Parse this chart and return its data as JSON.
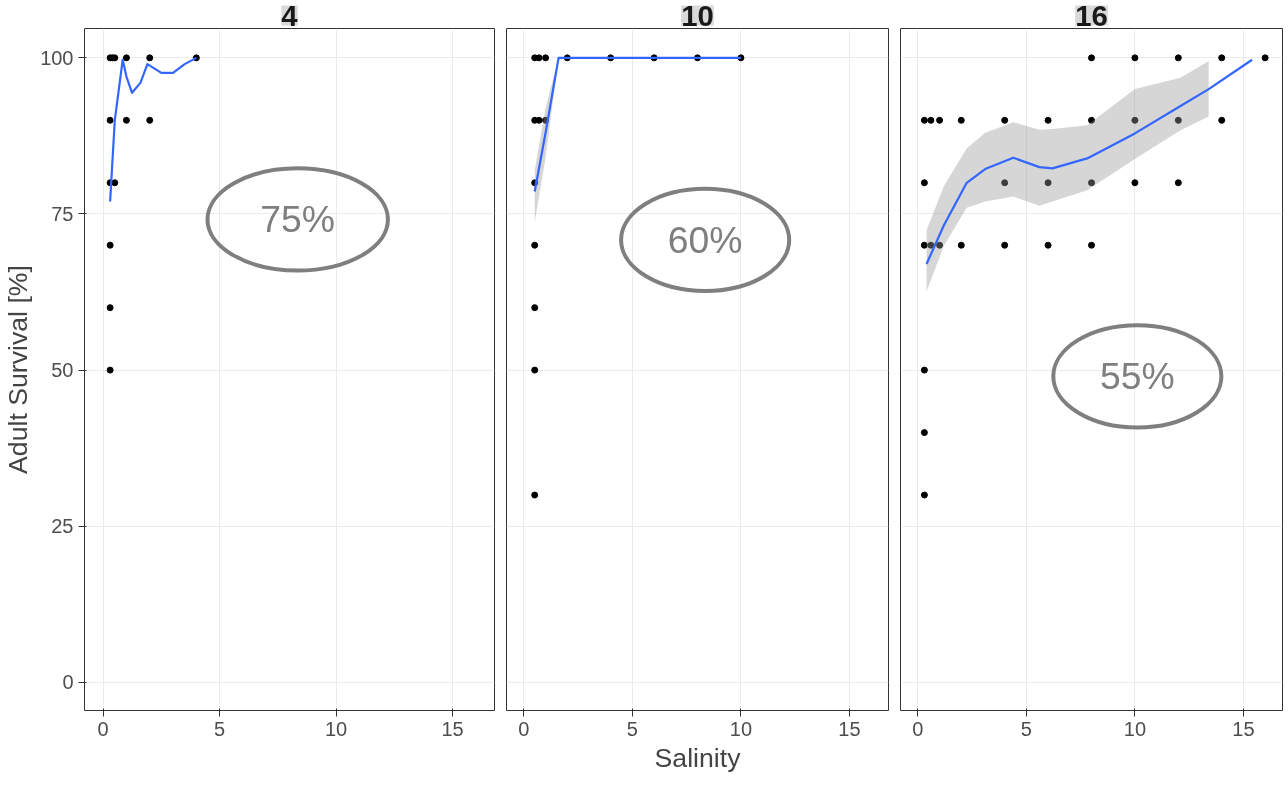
{
  "chart_data": [
    {
      "type": "scatter",
      "title": "4",
      "ylabel": "Adult Survival [%]",
      "xlim": [
        -0.8,
        16.8
      ],
      "ylim": [
        -4.5,
        104.7
      ],
      "xticks": [
        0,
        5,
        10,
        15
      ],
      "yticks": [
        0,
        25,
        50,
        75,
        100
      ],
      "grid": true,
      "annotations": [
        "75%"
      ],
      "series": [
        {
          "color": "#000000",
          "marker": "circle",
          "x": [
            0.3,
            0.3,
            0.3,
            0.3,
            0.3,
            0.3,
            0.4,
            0.5,
            0.5,
            1,
            1,
            2,
            2,
            4
          ],
          "values": [
            100,
            90,
            80,
            70,
            60,
            50,
            100,
            100,
            80,
            100,
            90,
            100,
            90,
            100
          ]
        },
        {
          "type": "line",
          "marker": "none",
          "color": "#3366ff",
          "x": [
            0.3,
            0.5,
            0.84,
            1.0,
            1.24,
            1.6,
            1.9,
            2.5,
            3.0,
            3.5,
            4.0
          ],
          "values": [
            77,
            90,
            99.7,
            97,
            94.4,
            96,
            99,
            97.6,
            97.6,
            99,
            100
          ]
        }
      ]
    },
    {
      "type": "scatter",
      "title": "10",
      "xlabel": "Salinity",
      "xlim": [
        -0.8,
        16.8
      ],
      "ylim": [
        -4.5,
        104.7
      ],
      "xticks": [
        0,
        5,
        10,
        15
      ],
      "yticks": [
        0,
        25,
        50,
        75,
        100
      ],
      "grid": true,
      "tick_labels": "x",
      "annotations": [
        "60%"
      ],
      "series": [
        {
          "color": "#000000",
          "marker": "circle",
          "x": [
            0.5,
            0.5,
            0.5,
            0.5,
            0.5,
            0.5,
            0.5,
            0.7,
            0.7,
            1,
            1,
            2,
            4,
            6,
            8,
            10
          ],
          "values": [
            100,
            90,
            80,
            70,
            60,
            50,
            30,
            100,
            90,
            100,
            90,
            100,
            100,
            100,
            100,
            100
          ]
        },
        {
          "type": "line",
          "marker": "none",
          "color": "#3366ff",
          "x": [
            0.5,
            1.0,
            1.6,
            4,
            6,
            8,
            10
          ],
          "values": [
            78.6,
            88,
            100,
            100,
            100,
            100,
            100
          ],
          "lower": [
            73.7,
            84,
            100,
            100,
            100,
            100,
            100
          ],
          "upper": [
            82,
            92,
            100,
            100,
            100,
            100,
            100
          ]
        }
      ]
    },
    {
      "type": "scatter",
      "title": "16",
      "xlim": [
        -0.8,
        16.8
      ],
      "ylim": [
        -4.5,
        104.7
      ],
      "xticks": [
        0,
        5,
        10,
        15
      ],
      "yticks": [
        0,
        25,
        50,
        75,
        100
      ],
      "grid": true,
      "tick_labels": "x",
      "annotations": [
        "55%"
      ],
      "series": [
        {
          "color": "#000000",
          "marker": "circle",
          "x": [
            8,
            10,
            12,
            14,
            16,
            0.3,
            0.6,
            1,
            2,
            4,
            6,
            8,
            10,
            12,
            14,
            0.3,
            4,
            6,
            8,
            10,
            12,
            0.3,
            0.6,
            1,
            2,
            4,
            6,
            8,
            0.3,
            0.3,
            0.3
          ],
          "values": [
            100,
            100,
            100,
            100,
            100,
            90,
            90,
            90,
            90,
            90,
            90,
            90,
            90,
            90,
            90,
            80,
            80,
            80,
            80,
            80,
            80,
            70,
            70,
            70,
            70,
            70,
            70,
            70,
            50,
            40,
            30
          ]
        },
        {
          "type": "line",
          "marker": "none",
          "color": "#3366ff",
          "x": [
            0.4,
            1.2,
            2.25,
            3.1,
            4.4,
            5.6,
            6.2,
            7.8,
            10,
            12.1,
            13.4,
            15.4
          ],
          "values": [
            67,
            73.2,
            80,
            82.2,
            84,
            82.5,
            82.3,
            83.9,
            87.9,
            92.3,
            95,
            99.7
          ],
          "lower": [
            62.6,
            69.9,
            76,
            77,
            77.8,
            76.3,
            77,
            78.8,
            83.8,
            88.4,
            90.6,
            null
          ],
          "upper": [
            72.4,
            79.5,
            85.5,
            88,
            89.7,
            88.5,
            88.6,
            89.2,
            95,
            96.8,
            99.5,
            null
          ]
        }
      ]
    }
  ]
}
